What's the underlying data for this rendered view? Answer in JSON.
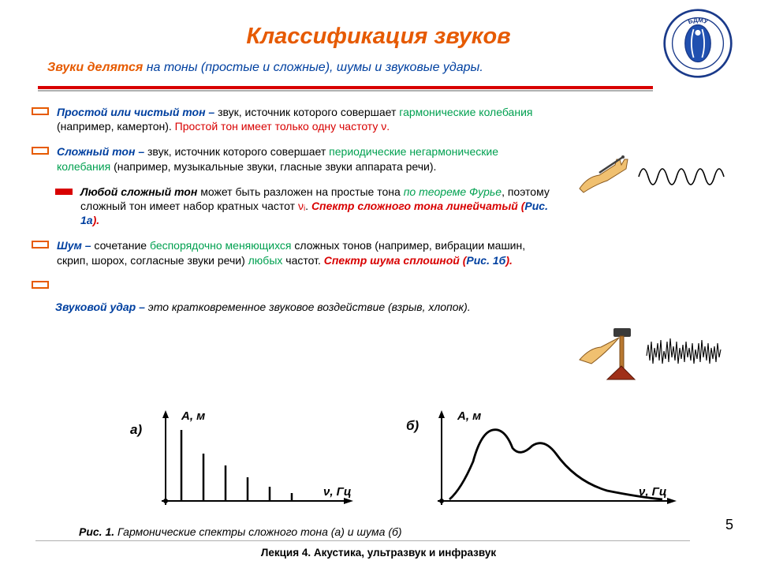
{
  "title": "Классификация звуков",
  "subtitle_lead": "Звуки делятся",
  "subtitle_rest": " на тоны (простые и сложные), шумы и звуковые удары.",
  "items": {
    "simple_tone": {
      "b1": "Простой или чистый тон –",
      "t1": " звук, источник которого совершает ",
      "g1": "гармонические колебания",
      "t2": " (например, камертон). ",
      "r1": "Простой тон имеет только одну частоту ν."
    },
    "complex_tone": {
      "b1": "Сложный тон –",
      "t1": " звук, источник которого совершает ",
      "g1": "периодические негармонические колебания",
      "t2": " (например, музыкальные звуки, гласные звуки аппарата речи)."
    },
    "complex_sub": {
      "b1": "Любой сложный тон",
      "t1": " может быть разложен на простые тона ",
      "g1": "по теореме Фурье",
      "t2": ", поэтому сложный тон имеет набор кратных частот ",
      "r1": "νᵢ",
      "t3": ". ",
      "r2": "Спектр сложного тона линейчатый (",
      "blue1": "Рис. 1а",
      "r3": ")."
    },
    "noise": {
      "b1": "Шум –",
      "t1": " сочетание ",
      "g1": "беспорядочно меняющихся",
      "t2": " сложных тонов (например, вибрации машин, скрип, шорох, согласные звуки речи) ",
      "g2": "любых",
      "t3": " частот. ",
      "r1": "Спектр шума сплошной (",
      "blue1": "Рис. 1б",
      "r2": ")."
    },
    "impact": {
      "b1": "Звуковой удар –",
      "t1": " это кратковременное звуковое воздействие (взрыв, хлопок)."
    }
  },
  "chart": {
    "label_a": "а)",
    "label_b": "б)",
    "ylabel": "А, м",
    "xlabel": "ν, Гц",
    "bars": [
      90,
      60,
      45,
      30,
      18,
      10
    ]
  },
  "caption_b": "Рис. 1.",
  "caption_t": " Гармонические спектры сложного тона (а) и шума (б)",
  "lecture": "Лекция 4. Акустика, ультразвук и инфразвук",
  "pagenum": "5",
  "logo_letters": "БДМУ"
}
